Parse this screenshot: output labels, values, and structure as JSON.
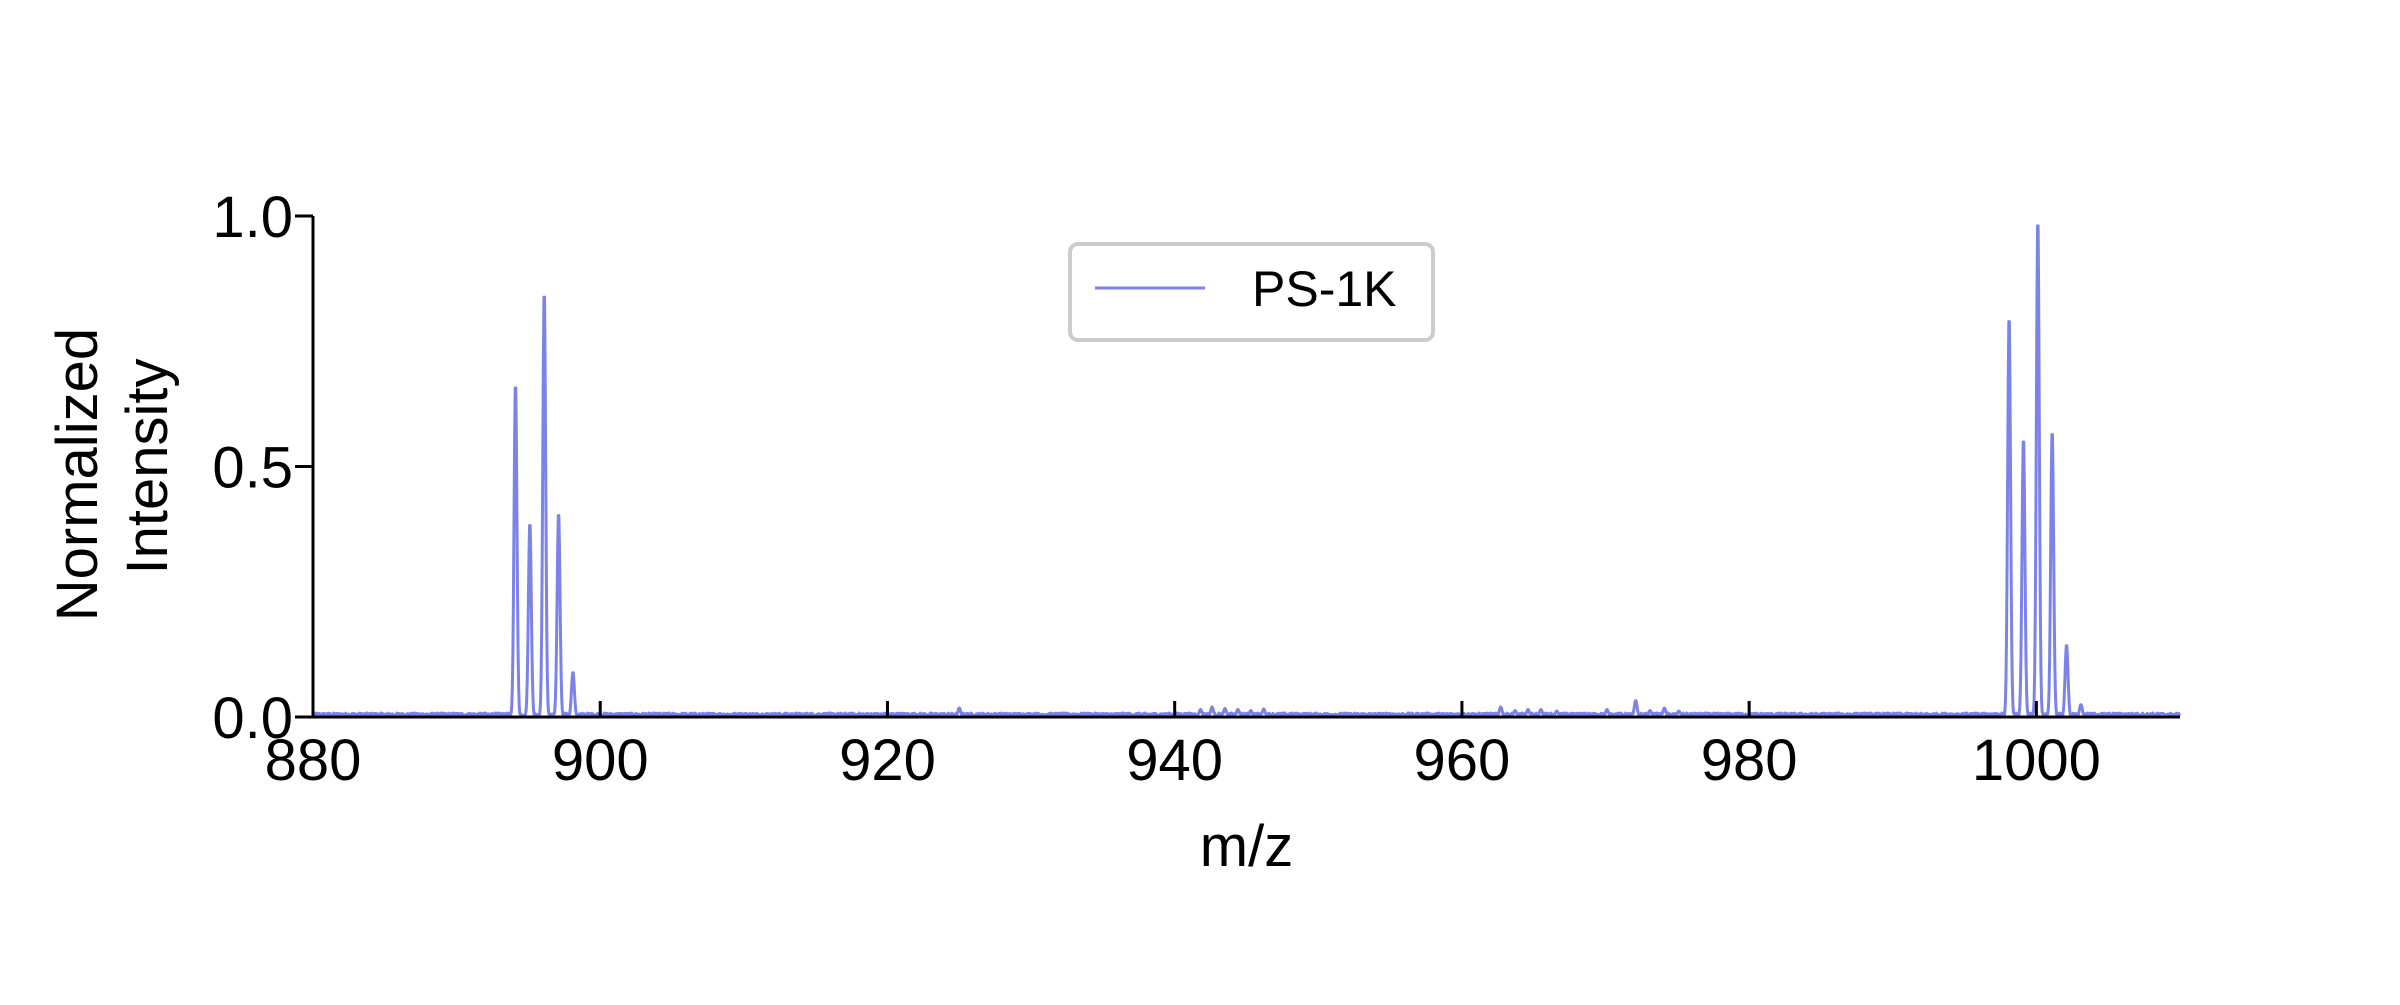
{
  "chart_data": {
    "type": "line",
    "title": "",
    "xlabel": "m/z",
    "ylabel_lines": [
      "Normalized",
      "Intensity"
    ],
    "xlim": [
      880,
      1010
    ],
    "ylim": [
      0,
      1.0
    ],
    "xticks": [
      880,
      900,
      920,
      940,
      960,
      980,
      1000
    ],
    "xtick_labels": [
      "880",
      "900",
      "920",
      "940",
      "960",
      "980",
      "1000"
    ],
    "yticks": [
      0.0,
      0.5,
      1.0
    ],
    "ytick_labels": [
      "0.0",
      "0.5",
      "1.0"
    ],
    "grid": false,
    "legend_position": "top-center",
    "series": [
      {
        "name": "PS-1K",
        "color": "#7b83ea",
        "peaks": [
          {
            "x": 894.1,
            "y": 0.67
          },
          {
            "x": 895.1,
            "y": 0.39
          },
          {
            "x": 896.1,
            "y": 0.855
          },
          {
            "x": 897.1,
            "y": 0.41
          },
          {
            "x": 898.1,
            "y": 0.09
          },
          {
            "x": 925.0,
            "y": 0.018
          },
          {
            "x": 941.8,
            "y": 0.015
          },
          {
            "x": 942.6,
            "y": 0.02
          },
          {
            "x": 943.5,
            "y": 0.017
          },
          {
            "x": 944.4,
            "y": 0.015
          },
          {
            "x": 945.3,
            "y": 0.013
          },
          {
            "x": 946.2,
            "y": 0.016
          },
          {
            "x": 962.7,
            "y": 0.02
          },
          {
            "x": 963.7,
            "y": 0.013
          },
          {
            "x": 964.6,
            "y": 0.015
          },
          {
            "x": 965.5,
            "y": 0.015
          },
          {
            "x": 966.6,
            "y": 0.012
          },
          {
            "x": 970.1,
            "y": 0.015
          },
          {
            "x": 972.1,
            "y": 0.033
          },
          {
            "x": 973.1,
            "y": 0.013
          },
          {
            "x": 974.1,
            "y": 0.018
          },
          {
            "x": 975.1,
            "y": 0.012
          },
          {
            "x": 998.1,
            "y": 0.805
          },
          {
            "x": 999.1,
            "y": 0.56
          },
          {
            "x": 1000.1,
            "y": 1.0
          },
          {
            "x": 1001.1,
            "y": 0.575
          },
          {
            "x": 1002.1,
            "y": 0.145
          },
          {
            "x": 1003.1,
            "y": 0.025
          }
        ]
      }
    ]
  }
}
